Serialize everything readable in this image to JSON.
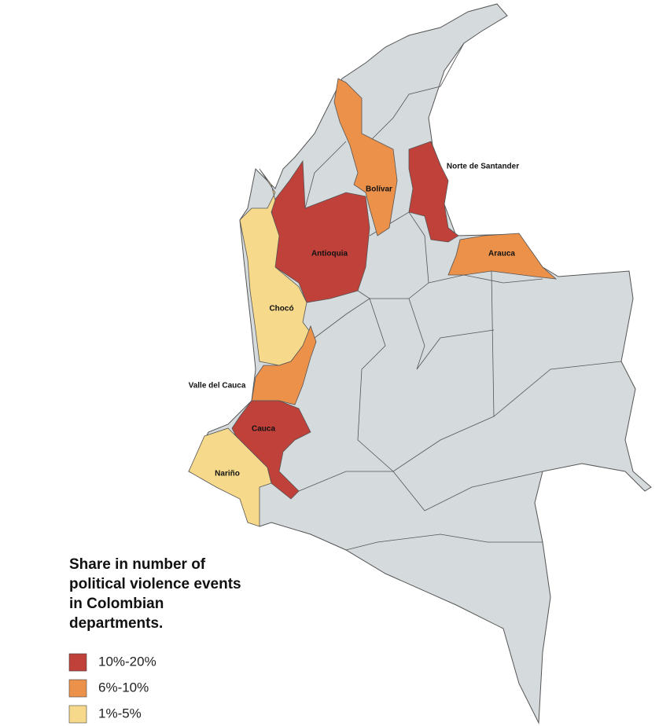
{
  "legend": {
    "title": "Share in number of political violence events in Colombian departments.",
    "items": [
      {
        "label": "10%-20%",
        "color": "#c0403a"
      },
      {
        "label": "6%-10%",
        "color": "#ec914a"
      },
      {
        "label": "1%-5%",
        "color": "#f6d98a"
      }
    ]
  },
  "regions": [
    {
      "label": "Antioquia",
      "color": "#c0403a"
    },
    {
      "label": "Bolívar",
      "color": "#ec914a"
    },
    {
      "label": "Norte de Santander",
      "color": "#c0403a"
    },
    {
      "label": "Arauca",
      "color": "#ec914a"
    },
    {
      "label": "Chocó",
      "color": "#f6d98a"
    },
    {
      "label": "Valle del Cauca",
      "color": "#ec914a"
    },
    {
      "label": "Cauca",
      "color": "#c0403a"
    },
    {
      "label": "Nariño",
      "color": "#f6d98a"
    }
  ]
}
